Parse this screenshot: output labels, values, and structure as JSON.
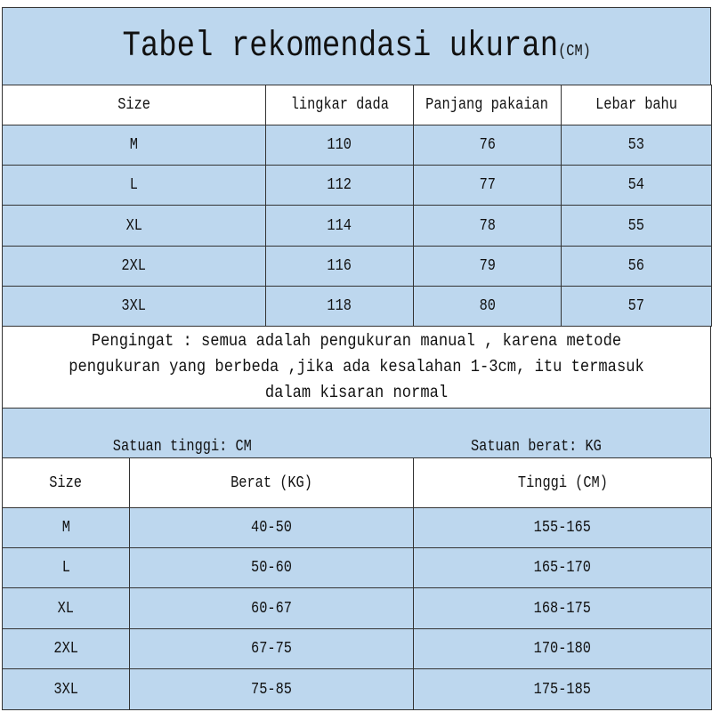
{
  "title": {
    "main": "Tabel rekomendasi ukuran",
    "unit": "(CM)"
  },
  "table1": {
    "headers": [
      "Size",
      "lingkar dada",
      "Panjang pakaian",
      "Lebar bahu"
    ],
    "rows": [
      [
        "M",
        "110",
        "76",
        "53"
      ],
      [
        "L",
        "112",
        "77",
        "54"
      ],
      [
        "XL",
        "114",
        "78",
        "55"
      ],
      [
        "2XL",
        "116",
        "79",
        "56"
      ],
      [
        "3XL",
        "118",
        "80",
        "57"
      ]
    ]
  },
  "note": "Pengingat : semua adalah pengukuran manual , karena metode pengukuran yang berbeda ,jika ada kesalahan 1-3cm, itu termasuk dalam kisaran normal",
  "units": {
    "height": "Satuan tinggi: CM",
    "weight": "Satuan berat: KG"
  },
  "table2": {
    "headers": [
      "Size",
      "Berat (KG)",
      "Tinggi (CM)"
    ],
    "rows": [
      [
        "M",
        "40-50",
        "155-165"
      ],
      [
        "L",
        "50-60",
        "165-170"
      ],
      [
        "XL",
        "60-67",
        "168-175"
      ],
      [
        "2XL",
        "67-75",
        "170-180"
      ],
      [
        "3XL",
        "75-85",
        "175-185"
      ]
    ]
  },
  "colors": {
    "header_blue": "#bdd7ee",
    "border": "#333333"
  }
}
